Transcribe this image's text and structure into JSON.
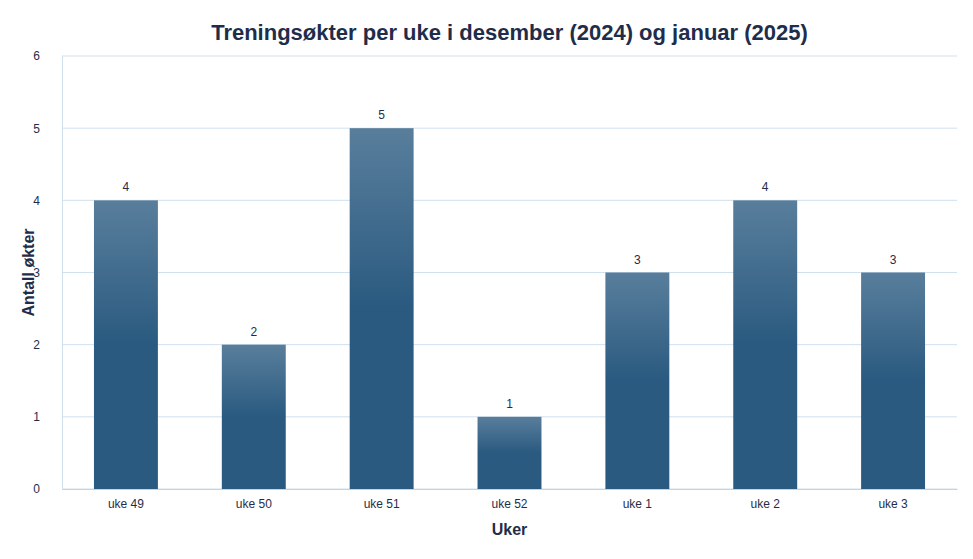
{
  "chart_data": {
    "type": "bar",
    "title": "Treningsøkter per uke i desember (2024) og januar (2025)",
    "x_label": "Uker",
    "y_label": "Antall økter",
    "categories": [
      "uke 49",
      "uke 50",
      "uke 51",
      "uke 52",
      "uke 1",
      "uke 2",
      "uke 3"
    ],
    "values": [
      4,
      2,
      5,
      1,
      3,
      4,
      3
    ],
    "color": "#2a5a80",
    "ylim": [
      0,
      6
    ],
    "yticks": [
      0,
      1,
      2,
      3,
      4,
      5,
      6
    ],
    "grid": true,
    "data_labels": true
  }
}
